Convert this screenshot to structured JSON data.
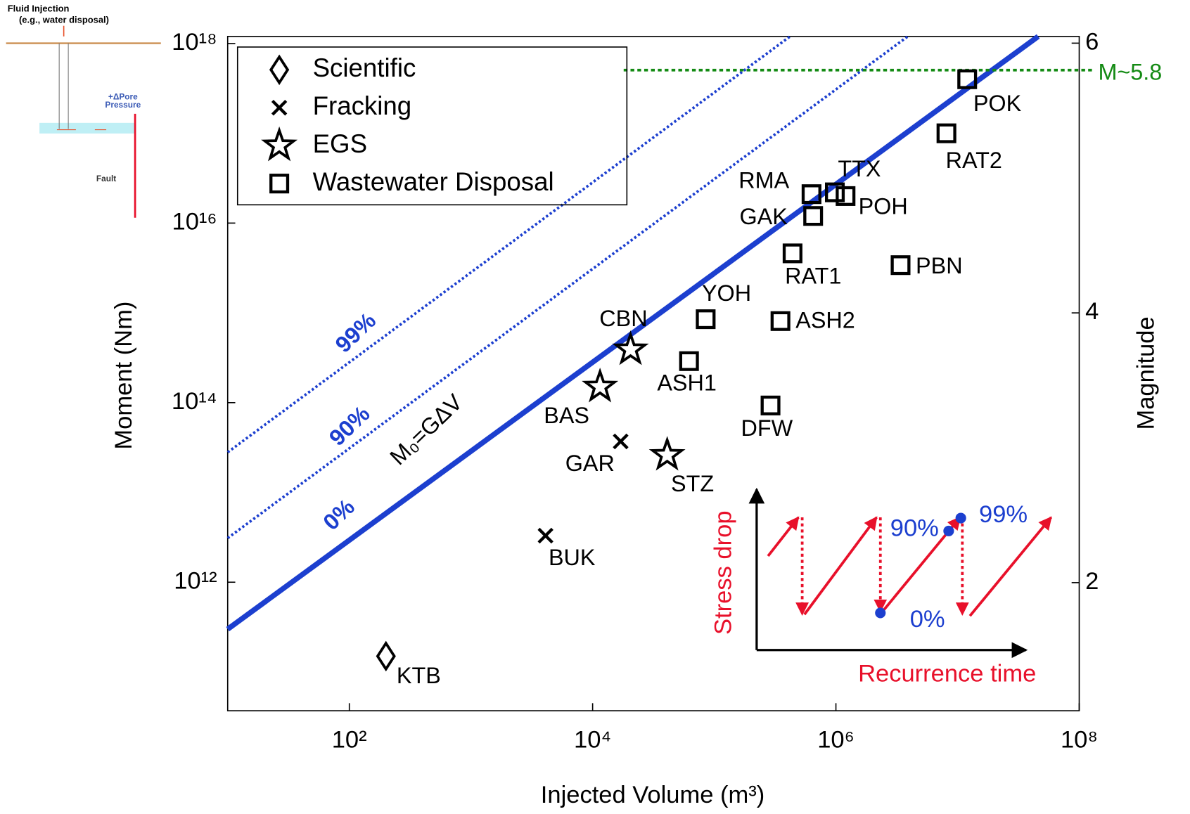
{
  "chart_data": {
    "type": "scatter",
    "x_label": "Injected Volume (m³)",
    "y_label": "Moment (Nm)",
    "y2_label": "Magnitude",
    "xscale": "log",
    "yscale": "log",
    "xlim": [
      10,
      100000000
    ],
    "ylim": [
      37000000000,
      1200000000000000000
    ],
    "y2lim": [
      1.05,
      6.05
    ],
    "xticks": [
      {
        "value": 100,
        "label": "10²"
      },
      {
        "value": 10000,
        "label": "10⁴"
      },
      {
        "value": 1000000,
        "label": "10⁶"
      },
      {
        "value": 100000000,
        "label": "10⁸"
      }
    ],
    "yticks": [
      {
        "value": 1000000000000,
        "label": "10¹²"
      },
      {
        "value": 100000000000000,
        "label": "10¹⁴"
      },
      {
        "value": 10000000000000000,
        "label": "10¹⁶"
      },
      {
        "value": 1000000000000000000,
        "label": "10¹⁸"
      }
    ],
    "y2ticks": [
      2,
      4,
      6
    ],
    "legend": "upper left",
    "series": [
      {
        "name": "Scientific",
        "marker": "diamond",
        "color": "#000000",
        "labels": [
          "KTB"
        ],
        "x": [
          200
        ],
        "y": [
          150000000000
        ]
      },
      {
        "name": "Fracking",
        "marker": "x",
        "color": "#000000",
        "labels": [
          "BUK",
          "GAR"
        ],
        "x": [
          4100,
          17000
        ],
        "y": [
          3300000000000,
          37000000000000
        ]
      },
      {
        "name": "EGS",
        "marker": "star",
        "color": "#000000",
        "labels": [
          "BAS",
          "CBN",
          "STZ"
        ],
        "x": [
          11500,
          20500,
          41000
        ],
        "y": [
          150000000000000,
          390000000000000,
          26000000000000
        ]
      },
      {
        "name": "Wastewater Disposal",
        "marker": "square",
        "color": "#000000",
        "labels": [
          "ASH1",
          "YOH",
          "DFW",
          "ASH2",
          "RAT1",
          "GAK",
          "RMA",
          "TTX",
          "POH",
          "PBN",
          "RAT2",
          "POK"
        ],
        "x": [
          62000,
          85000,
          290000,
          350000,
          440000,
          650000,
          630000,
          980000,
          1200000,
          3400000,
          8100000,
          12000000
        ],
        "y": [
          290000000000000,
          850000000000000,
          93000000000000,
          810000000000000,
          4600000000000000,
          12000000000000000,
          21000000000000000,
          22000000000000000,
          20000000000000000,
          3400000000000000,
          100000000000000000,
          400000000000000000
        ]
      }
    ],
    "lines": [
      {
        "label": "0%",
        "color": "#1c3fcf",
        "style": "solid",
        "x": [
          10,
          46000000
        ],
        "y": [
          300000000000,
          1200000000000000000
        ]
      },
      {
        "label": "90%",
        "color": "#1c3fcf",
        "style": "dotted",
        "x": [
          10,
          3900000
        ],
        "y": [
          3100000000000,
          1200000000000000000
        ]
      },
      {
        "label": "99%",
        "color": "#1c3fcf",
        "style": "dotted",
        "x": [
          10,
          420000
        ],
        "y": [
          28000000000000,
          1200000000000000000
        ]
      }
    ],
    "line_annotation": "M₀=GΔV",
    "hline": {
      "label": "M~5.8",
      "value": 5.8,
      "axis": "y2",
      "x_start": 18000,
      "color": "#138a13"
    },
    "inset": {
      "y_label": "Stress drop",
      "x_label": "Recurrence time",
      "labels": [
        "90%",
        "99%",
        "0%"
      ]
    },
    "schematic": {
      "title": "Fluid Injection",
      "subtitle": "(e.g., water disposal)",
      "pressure": [
        "+ΔPore",
        "Pressure"
      ],
      "fault": "Fault"
    }
  }
}
